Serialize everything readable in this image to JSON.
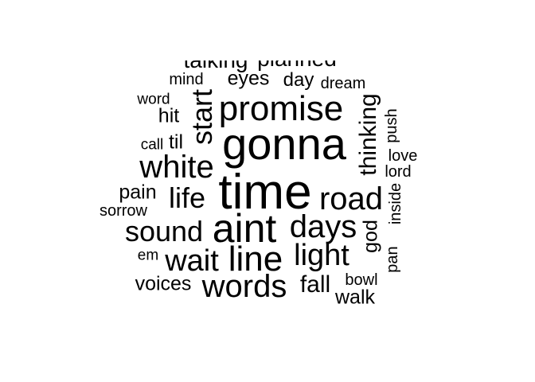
{
  "word_color": "#000000",
  "words": {
    "talking": "talking",
    "planned": "planned",
    "mind": "mind",
    "eyes": "eyes",
    "day": "day",
    "dream": "dream",
    "word": "word",
    "promise": "promise",
    "start": "start",
    "thinking": "thinking",
    "push": "push",
    "hit": "hit",
    "call": "call",
    "til": "til",
    "gonna": "gonna",
    "love": "love",
    "white": "white",
    "lord": "lord",
    "pain": "pain",
    "life": "life",
    "time": "time",
    "road": "road",
    "inside": "inside",
    "sorrow": "sorrow",
    "sound": "sound",
    "aint": "aint",
    "days": "days",
    "god": "god",
    "em": "em",
    "wait": "wait",
    "line": "line",
    "light": "light",
    "pan": "pan",
    "voices": "voices",
    "words": "words",
    "fall": "fall",
    "bowl": "bowl",
    "walk": "walk"
  }
}
